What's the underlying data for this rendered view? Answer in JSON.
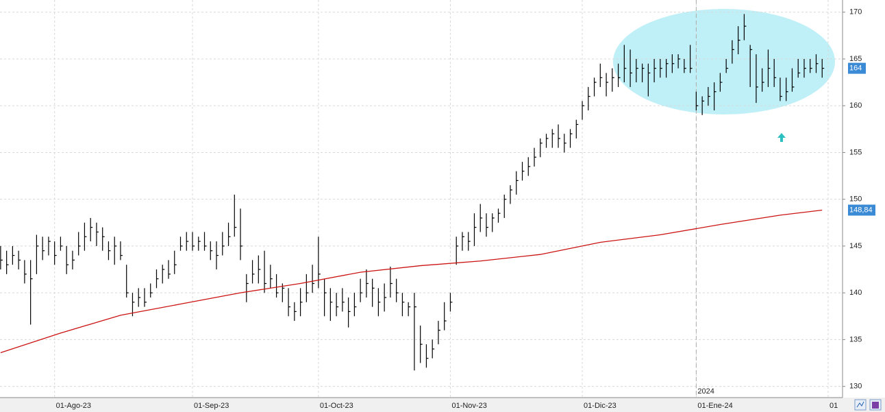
{
  "chart_data": {
    "type": "ohlc",
    "ylim": [
      128.8,
      171.3
    ],
    "yticks": [
      130,
      135,
      140,
      145,
      150,
      155,
      160,
      165,
      170
    ],
    "xlim": [
      -0.1,
      140.4
    ],
    "xticks": [
      {
        "value": 9,
        "label": "01-Ago-23"
      },
      {
        "value": 32,
        "label": "01-Sep-23"
      },
      {
        "value": 53,
        "label": "01-Oct-23"
      },
      {
        "value": 75,
        "label": "01-Nov-23"
      },
      {
        "value": 97,
        "label": "01-Dic-23"
      },
      {
        "value": 116,
        "label": "01-Ene-24"
      },
      {
        "value": 138,
        "label": "01"
      }
    ],
    "year_marker": {
      "value": 116,
      "label": "2024"
    },
    "grid": true,
    "ohlc": {
      "color": "#000000",
      "high": [
        145,
        144.5,
        145,
        144.5,
        143.5,
        143.5,
        146.2,
        146,
        146,
        145.5,
        146,
        145,
        144.5,
        146.5,
        147.5,
        148,
        147.5,
        147,
        145.5,
        146,
        145.5,
        143,
        140,
        140.5,
        140.5,
        141,
        142.5,
        143,
        143.5,
        144.5,
        146,
        146.5,
        146.5,
        146,
        146.5,
        145.5,
        145.5,
        146.5,
        147.5,
        150.5,
        149,
        142,
        143.5,
        144,
        144.5,
        143,
        142,
        141,
        140.5,
        139,
        140.5,
        142,
        143,
        146,
        141.5,
        140.5,
        140,
        140.5,
        139.5,
        140,
        141.5,
        142.5,
        141.5,
        140.5,
        141,
        142.8,
        141.5,
        140,
        139,
        140,
        136.5,
        134.5,
        135,
        137,
        139,
        140,
        146,
        146.5,
        146.5,
        148.5,
        149.5,
        148.5,
        148.5,
        149,
        150.5,
        151.5,
        153,
        154,
        154.5,
        155.5,
        156.5,
        157,
        157.5,
        158,
        157,
        157.5,
        158.5,
        160.5,
        162,
        163,
        164.5,
        163.5,
        164,
        164.5,
        166.5,
        166,
        165,
        164.5,
        164.5,
        165,
        165,
        165,
        165.5,
        165.5,
        165,
        166.5,
        161.5,
        161,
        162,
        162.5,
        163.5,
        165,
        167,
        168.5,
        169.8,
        166.5,
        165.5,
        164,
        166,
        165,
        163,
        163,
        164,
        165,
        165,
        165,
        165.5,
        165
      ],
      "low": [
        142.5,
        142,
        143,
        142.5,
        141,
        136.6,
        142,
        143.5,
        144,
        143,
        144.5,
        142,
        142.5,
        144,
        144.5,
        145.5,
        145,
        144.5,
        143.5,
        143,
        143.5,
        139.5,
        137.5,
        138.5,
        138.5,
        139.5,
        140.5,
        141,
        141.5,
        142,
        144.5,
        144.5,
        144.5,
        144.5,
        144.5,
        143.5,
        142.5,
        144,
        145,
        146,
        143.5,
        139,
        141,
        141,
        140,
        140.5,
        139.5,
        139,
        137.5,
        137,
        137.5,
        139,
        140,
        140.5,
        137.5,
        137,
        137.5,
        138,
        136.3,
        137.5,
        139,
        139.5,
        138.5,
        137.5,
        138,
        139.5,
        139,
        137.5,
        137.5,
        131.7,
        132.5,
        132,
        133,
        134.5,
        136,
        138,
        143,
        144.5,
        144.5,
        145,
        146.5,
        146,
        146.5,
        147.5,
        148,
        149.5,
        150.5,
        152,
        152.5,
        153.5,
        154.5,
        155.5,
        155.5,
        155.5,
        155,
        155.5,
        156.5,
        158.5,
        159.5,
        161,
        162,
        161,
        161.5,
        162,
        162.5,
        162,
        162.5,
        162.5,
        161,
        162.5,
        163,
        163,
        163.5,
        164,
        163.5,
        163.5,
        159.5,
        159,
        160,
        159.5,
        161.5,
        163.5,
        164.5,
        165.5,
        167,
        162,
        160.3,
        161.5,
        162,
        162,
        160.5,
        160.5,
        161.5,
        163,
        163,
        163.5,
        163.5,
        163
      ],
      "close": [
        143.5,
        143,
        144,
        143.5,
        142,
        141.5,
        145,
        144.5,
        145.5,
        144,
        145,
        143,
        143.5,
        145,
        146,
        147,
        146.5,
        146,
        144.5,
        145,
        144,
        140,
        139,
        139.5,
        139,
        140,
        141.5,
        142.5,
        142,
        143,
        145,
        145.5,
        145,
        145.5,
        145,
        144.5,
        144,
        145,
        146,
        147,
        145,
        141,
        142,
        142.5,
        141,
        141.5,
        140,
        140.5,
        138.5,
        138,
        139,
        140,
        141,
        142,
        140,
        139,
        138.5,
        139,
        138,
        138.5,
        140,
        141,
        140.5,
        139,
        139.5,
        141,
        140,
        139,
        138.5,
        138.5,
        134.5,
        133,
        134,
        136,
        137,
        139,
        145,
        146,
        145.5,
        147,
        148,
        147,
        148,
        148.5,
        150,
        151,
        152,
        153,
        153.5,
        154.5,
        156,
        156.5,
        157,
        156.5,
        156,
        157,
        158,
        160,
        161,
        162.5,
        163,
        162.5,
        163,
        163,
        164,
        163.5,
        164,
        164,
        163.5,
        164,
        164,
        164.5,
        164.5,
        165,
        164,
        164,
        160,
        160.5,
        161,
        161.5,
        162.5,
        164,
        166,
        167,
        168.5,
        166,
        162,
        162.5,
        164,
        163,
        161,
        161.5,
        162,
        163.5,
        164,
        164,
        164.5,
        164
      ]
    },
    "last_price": {
      "value": 164,
      "color": "#3a8ad6"
    },
    "moving_average": {
      "color": "#cc1111",
      "x": [
        0,
        10,
        20,
        30,
        40,
        50,
        60,
        70,
        80,
        90,
        100,
        110,
        120,
        130,
        137
      ],
      "values": [
        133.6,
        135.7,
        137.6,
        138.8,
        140,
        141,
        142.2,
        142.9,
        143.4,
        144.1,
        145.4,
        146.2,
        147.3,
        148.3,
        148.84
      ],
      "last_label": {
        "value": 148.84,
        "label": "148,84"
      }
    }
  }
}
